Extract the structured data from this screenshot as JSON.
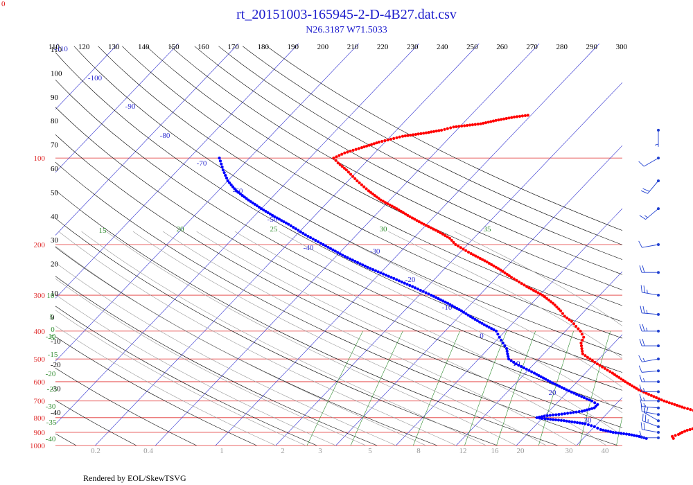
{
  "header": {
    "title": "rt_20151003-165945-2-D-4B27.dat.csv",
    "subtitle": "N26.3187 W71.5033",
    "corner_label": "0"
  },
  "footer": {
    "credit": "Rendered by EOL/SkewTSVG"
  },
  "colors": {
    "title": "#1a1acc",
    "isobar": "#e03030",
    "isotherm": "#3030d0",
    "dry_adiabat": "#000000",
    "moist_adiabat": "#999999",
    "mixing_ratio": "#2e8b2e",
    "temperature": "#ff0000",
    "dewpoint": "#0000ff",
    "wind": "#1f3fd0"
  },
  "chart_data": {
    "type": "scatter",
    "chart_kind": "skew-T log-p diagram",
    "pressure_axis": {
      "scale": "log",
      "range_hPa": [
        1000,
        40
      ],
      "labels": [
        100,
        200,
        300,
        400,
        500,
        600,
        700,
        800,
        900,
        1000
      ]
    },
    "top_theta_labels": [
      110,
      120,
      130,
      140,
      150,
      160,
      170,
      180,
      190,
      200,
      210,
      220,
      230,
      240,
      250,
      260,
      270,
      280,
      290,
      300
    ],
    "left_theta_labels": [
      110,
      100,
      90,
      80,
      70,
      60,
      50,
      40,
      30,
      20,
      10,
      0,
      -10,
      -20,
      -30,
      -40
    ],
    "isotherm_labels": [
      -110,
      -100,
      -90,
      -80,
      -70,
      -60,
      -50,
      -40,
      -30,
      -20,
      -10,
      0,
      10,
      20,
      30
    ],
    "moist_adiabat_labels": [
      10,
      5,
      0,
      -5,
      -10,
      -15,
      -20,
      -25,
      -30,
      -35,
      -40,
      15,
      20,
      25,
      30,
      35
    ],
    "mixing_ratio_labels": [
      0.2,
      0.4,
      1,
      2,
      3,
      5,
      8,
      12,
      16,
      20,
      30,
      40
    ],
    "series": [
      {
        "name": "Temperature",
        "color": "#ff0000",
        "points": [
          [
            945,
            25.0
          ],
          [
            930,
            24.5
          ],
          [
            915,
            25.2
          ],
          [
            900,
            25.5
          ],
          [
            885,
            26.0
          ],
          [
            870,
            27.0
          ],
          [
            855,
            27.5
          ],
          [
            840,
            27.5
          ],
          [
            825,
            28.5
          ],
          [
            805,
            28.5
          ],
          [
            790,
            27.5
          ],
          [
            775,
            26.0
          ],
          [
            760,
            24.5
          ],
          [
            740,
            22.0
          ],
          [
            720,
            19.8
          ],
          [
            700,
            17.5
          ],
          [
            670,
            14.5
          ],
          [
            640,
            11.5
          ],
          [
            600,
            8.0
          ],
          [
            560,
            4.5
          ],
          [
            520,
            0.5
          ],
          [
            500,
            -1.5
          ],
          [
            480,
            -3.5
          ],
          [
            460,
            -4.5
          ],
          [
            440,
            -5.5
          ],
          [
            420,
            -6.0
          ],
          [
            400,
            -7.5
          ],
          [
            385,
            -9.0
          ],
          [
            370,
            -10.5
          ],
          [
            355,
            -12.5
          ],
          [
            340,
            -14.0
          ],
          [
            320,
            -16.5
          ],
          [
            300,
            -19.5
          ],
          [
            280,
            -23.5
          ],
          [
            260,
            -27.5
          ],
          [
            245,
            -30.5
          ],
          [
            230,
            -34.0
          ],
          [
            215,
            -38.0
          ],
          [
            200,
            -42.0
          ],
          [
            190,
            -44.0
          ],
          [
            180,
            -47.0
          ],
          [
            170,
            -50.5
          ],
          [
            160,
            -54.0
          ],
          [
            150,
            -57.5
          ],
          [
            140,
            -61.5
          ],
          [
            130,
            -65.0
          ],
          [
            120,
            -68.5
          ],
          [
            110,
            -72.0
          ],
          [
            104,
            -74.5
          ],
          [
            100,
            -76.0
          ],
          [
            96,
            -75.0
          ],
          [
            92,
            -73.0
          ],
          [
            88,
            -71.0
          ],
          [
            86,
            -69.5
          ],
          [
            84,
            -68.0
          ],
          [
            82,
            -65.0
          ],
          [
            80,
            -62.5
          ],
          [
            78,
            -61.0
          ],
          [
            77,
            -59.0
          ],
          [
            76,
            -57.0
          ],
          [
            74,
            -55.0
          ],
          [
            72,
            -52.5
          ],
          [
            71,
            -50.5
          ]
        ]
      },
      {
        "name": "Dewpoint",
        "color": "#0000ff",
        "points": [
          [
            945,
            20.5
          ],
          [
            930,
            19.0
          ],
          [
            915,
            17.0
          ],
          [
            900,
            14.0
          ],
          [
            880,
            11.5
          ],
          [
            860,
            10.0
          ],
          [
            840,
            8.0
          ],
          [
            820,
            4.0
          ],
          [
            805,
            0.0
          ],
          [
            800,
            -1.0
          ],
          [
            790,
            0.0
          ],
          [
            775,
            3.0
          ],
          [
            760,
            5.5
          ],
          [
            740,
            7.0
          ],
          [
            720,
            7.0
          ],
          [
            700,
            5.5
          ],
          [
            670,
            2.5
          ],
          [
            640,
            -0.5
          ],
          [
            600,
            -4.5
          ],
          [
            560,
            -8.5
          ],
          [
            520,
            -13.0
          ],
          [
            500,
            -15.0
          ],
          [
            480,
            -16.0
          ],
          [
            460,
            -17.0
          ],
          [
            440,
            -18.5
          ],
          [
            420,
            -20.0
          ],
          [
            400,
            -21.5
          ],
          [
            380,
            -24.5
          ],
          [
            360,
            -27.5
          ],
          [
            340,
            -30.5
          ],
          [
            320,
            -34.0
          ],
          [
            300,
            -38.0
          ],
          [
            280,
            -42.5
          ],
          [
            260,
            -47.5
          ],
          [
            240,
            -53.0
          ],
          [
            220,
            -58.5
          ],
          [
            200,
            -64.0
          ],
          [
            185,
            -68.5
          ],
          [
            170,
            -73.0
          ],
          [
            160,
            -76.5
          ],
          [
            150,
            -80.0
          ],
          [
            140,
            -83.5
          ],
          [
            130,
            -87.0
          ],
          [
            120,
            -90.0
          ],
          [
            110,
            -92.5
          ],
          [
            100,
            -95.0
          ]
        ]
      }
    ],
    "wind_barbs": [
      {
        "p": 940,
        "dir": 90,
        "kt": 10
      },
      {
        "p": 900,
        "dir": 100,
        "kt": 20
      },
      {
        "p": 860,
        "dir": 110,
        "kt": 25
      },
      {
        "p": 820,
        "dir": 120,
        "kt": 20
      },
      {
        "p": 780,
        "dir": 100,
        "kt": 15
      },
      {
        "p": 740,
        "dir": 95,
        "kt": 15
      },
      {
        "p": 700,
        "dir": 90,
        "kt": 15
      },
      {
        "p": 650,
        "dir": 90,
        "kt": 15
      },
      {
        "p": 600,
        "dir": 90,
        "kt": 15
      },
      {
        "p": 550,
        "dir": 85,
        "kt": 10
      },
      {
        "p": 500,
        "dir": 80,
        "kt": 15
      },
      {
        "p": 450,
        "dir": 90,
        "kt": 20
      },
      {
        "p": 400,
        "dir": 90,
        "kt": 25
      },
      {
        "p": 350,
        "dir": 95,
        "kt": 25
      },
      {
        "p": 300,
        "dir": 100,
        "kt": 25
      },
      {
        "p": 250,
        "dir": 90,
        "kt": 20
      },
      {
        "p": 200,
        "dir": 80,
        "kt": 10
      },
      {
        "p": 150,
        "dir": 50,
        "kt": 15
      },
      {
        "p": 120,
        "dir": 40,
        "kt": 20
      },
      {
        "p": 100,
        "dir": 60,
        "kt": 10
      },
      {
        "p": 80,
        "dir": 0,
        "kt": 5
      }
    ]
  }
}
